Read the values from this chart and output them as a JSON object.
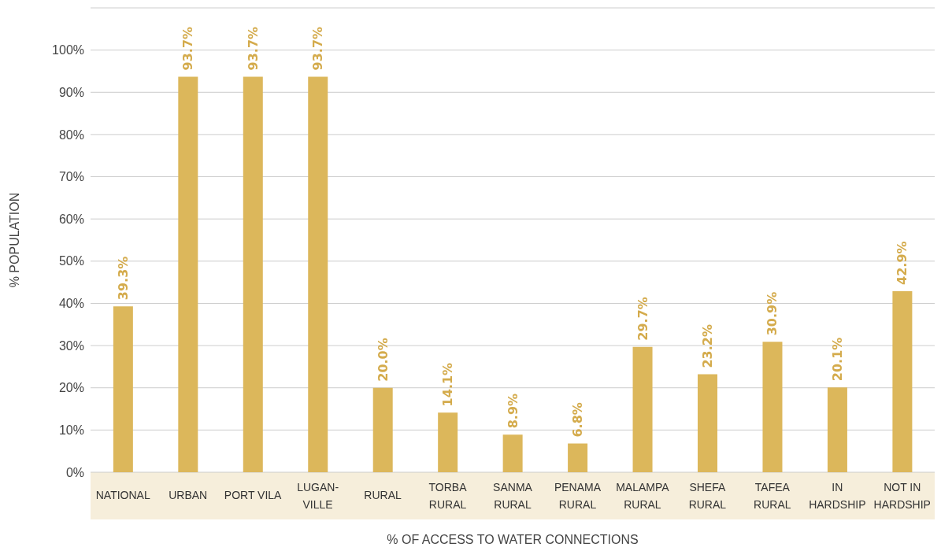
{
  "chart_data": {
    "type": "bar",
    "xlabel": "% OF ACCESS TO WATER CONNECTIONS",
    "ylabel": "% POPULATION",
    "categories": [
      "NATIONAL",
      "URBAN",
      "PORT VILA",
      "LUGAN-VILLE",
      "RURAL",
      "TORBA RURAL",
      "SANMA RURAL",
      "PENAMA RURAL",
      "MALAMPA RURAL",
      "SHEFA RURAL",
      "TAFEA RURAL",
      "IN HARDSHIP",
      "NOT IN HARDSHIP"
    ],
    "values": [
      39.3,
      93.7,
      93.7,
      93.7,
      20.0,
      14.1,
      8.9,
      6.8,
      29.7,
      23.2,
      30.9,
      20.1,
      42.9
    ],
    "value_labels": [
      "39.3%",
      "93.7%",
      "93.7%",
      "93.7%",
      "20.0%",
      "14.1%",
      "8.9%",
      "6.8%",
      "29.7%",
      "23.2%",
      "30.9%",
      "20.1%",
      "42.9%"
    ],
    "color": "#dcb75b",
    "ylim": [
      0,
      110
    ],
    "yticks": [
      {
        "value": 0,
        "label": "0%"
      },
      {
        "value": 10,
        "label": "10%"
      },
      {
        "value": 20,
        "label": "20%"
      },
      {
        "value": 30,
        "label": "30%"
      },
      {
        "value": 40,
        "label": "40%"
      },
      {
        "value": 50,
        "label": "50%"
      },
      {
        "value": 60,
        "label": "60%"
      },
      {
        "value": 70,
        "label": "70%"
      },
      {
        "value": 80,
        "label": "80%"
      },
      {
        "value": 90,
        "label": "90%"
      },
      {
        "value": 100,
        "label": "100%"
      },
      {
        "value": 110,
        "label": null
      }
    ],
    "grid": "y",
    "legend": false
  }
}
